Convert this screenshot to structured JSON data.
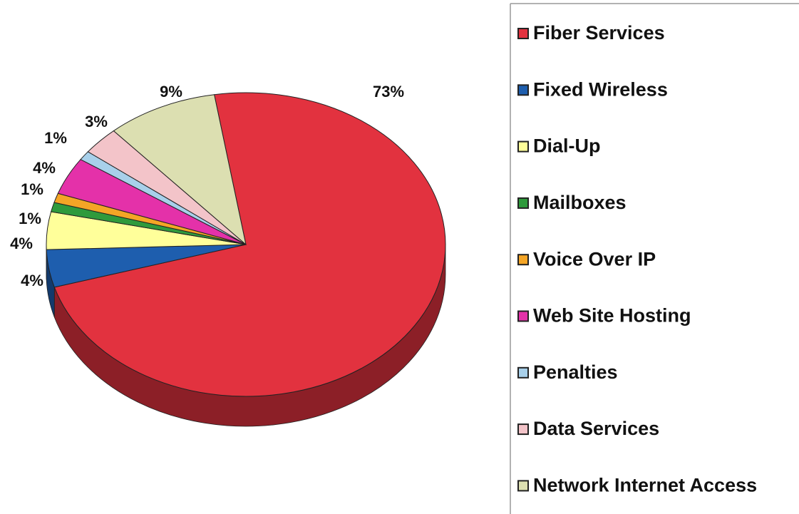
{
  "chart_data": {
    "type": "pie",
    "categories": [
      "Fiber Services",
      "Fixed Wireless",
      "Dial-Up",
      "Mailboxes",
      "Voice Over IP",
      "Web Site Hosting",
      "Penalties",
      "Data Services",
      "Network Internet Access"
    ],
    "values": [
      73,
      4,
      4,
      1,
      1,
      4,
      1,
      3,
      9
    ],
    "value_labels": [
      "73%",
      "4%",
      "4%",
      "1%",
      "1%",
      "4%",
      "1%",
      "3%",
      "9%"
    ],
    "colors": [
      "#e2323f",
      "#1e5eae",
      "#ffff9a",
      "#2f9a3c",
      "#f4a526",
      "#e431a9",
      "#a8d0ea",
      "#f3c4c9",
      "#dcdfb1"
    ],
    "legend": "right"
  }
}
